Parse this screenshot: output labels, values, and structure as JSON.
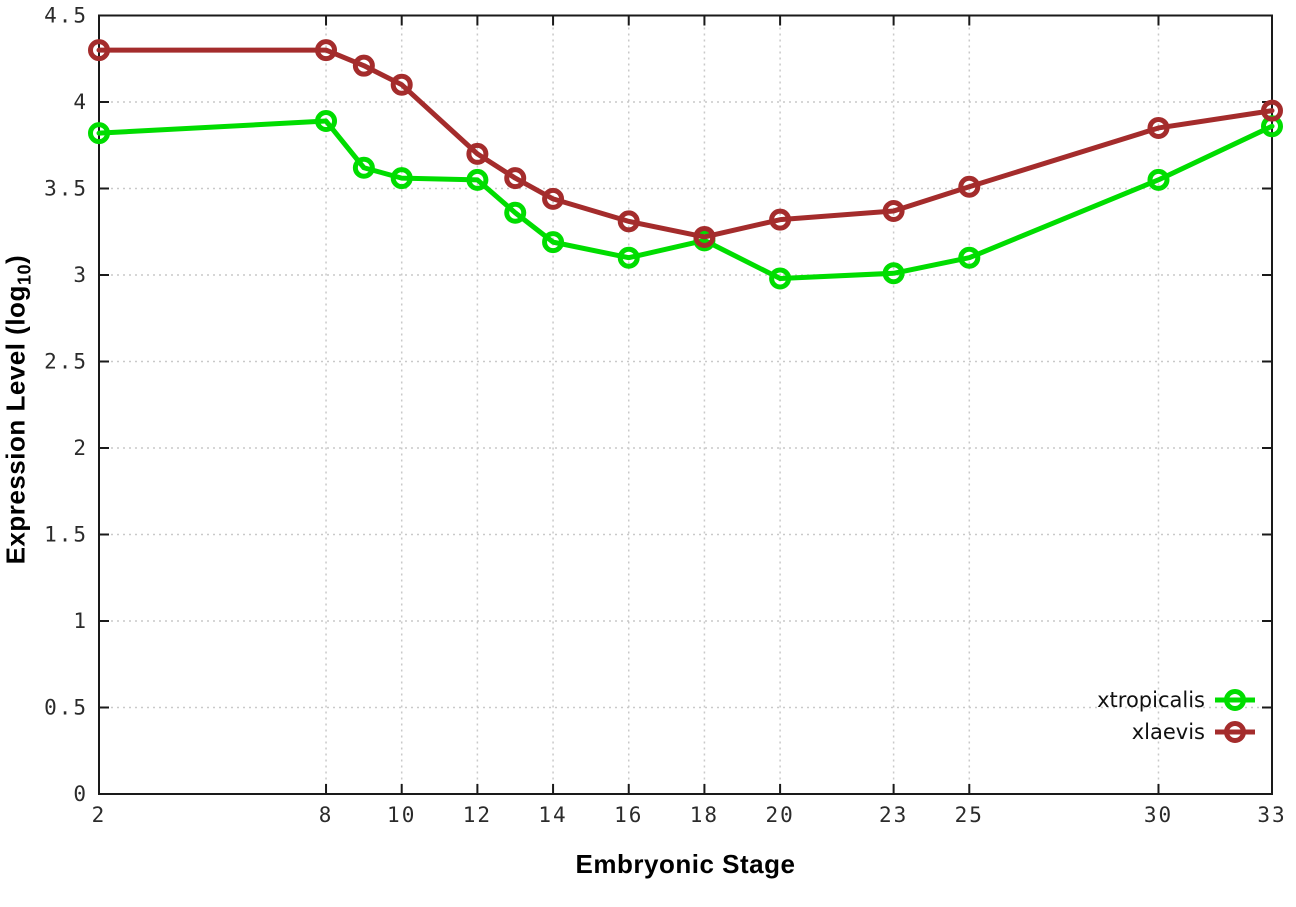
{
  "chart_data": {
    "type": "line",
    "title": "",
    "xlabel": "Embryonic Stage",
    "ylabel": "Expression Level (log10)",
    "ylabel_parts": {
      "prefix": "Expression Level (log",
      "sub": "10",
      "suffix": ")"
    },
    "x": [
      2,
      8,
      9,
      10,
      12,
      13,
      14,
      16,
      18,
      20,
      23,
      25,
      30,
      33
    ],
    "xticks": [
      2,
      8,
      10,
      12,
      14,
      16,
      18,
      20,
      23,
      25,
      30,
      33
    ],
    "yticks": [
      0,
      0.5,
      1,
      1.5,
      2,
      2.5,
      3,
      3.5,
      4,
      4.5
    ],
    "ytick_labels": [
      "0",
      "0.5",
      "1",
      "1.5",
      "2",
      "2.5",
      "3",
      "3.5",
      "4",
      "4.5"
    ],
    "xlim": [
      2,
      33
    ],
    "ylim": [
      0,
      4.5
    ],
    "grid": true,
    "grid_style": "dotted",
    "legend_position": "inside-bottom-right",
    "series": [
      {
        "name": "xtropicalis",
        "color": "#00dd00",
        "marker": "open-circle",
        "values": [
          3.82,
          3.89,
          3.62,
          3.56,
          3.55,
          3.36,
          3.19,
          3.1,
          3.2,
          2.98,
          3.01,
          3.1,
          3.55,
          3.86
        ]
      },
      {
        "name": "xlaevis",
        "color": "#a42c2c",
        "marker": "open-circle",
        "values": [
          4.3,
          4.3,
          4.21,
          4.1,
          3.7,
          3.56,
          3.44,
          3.31,
          3.22,
          3.32,
          3.37,
          3.51,
          3.85,
          3.95
        ]
      }
    ],
    "colors": {
      "background": "#ffffff",
      "border": "#1a1a1a",
      "grid": "#c9c9c9",
      "tick_text": "#2b2b2b"
    }
  }
}
